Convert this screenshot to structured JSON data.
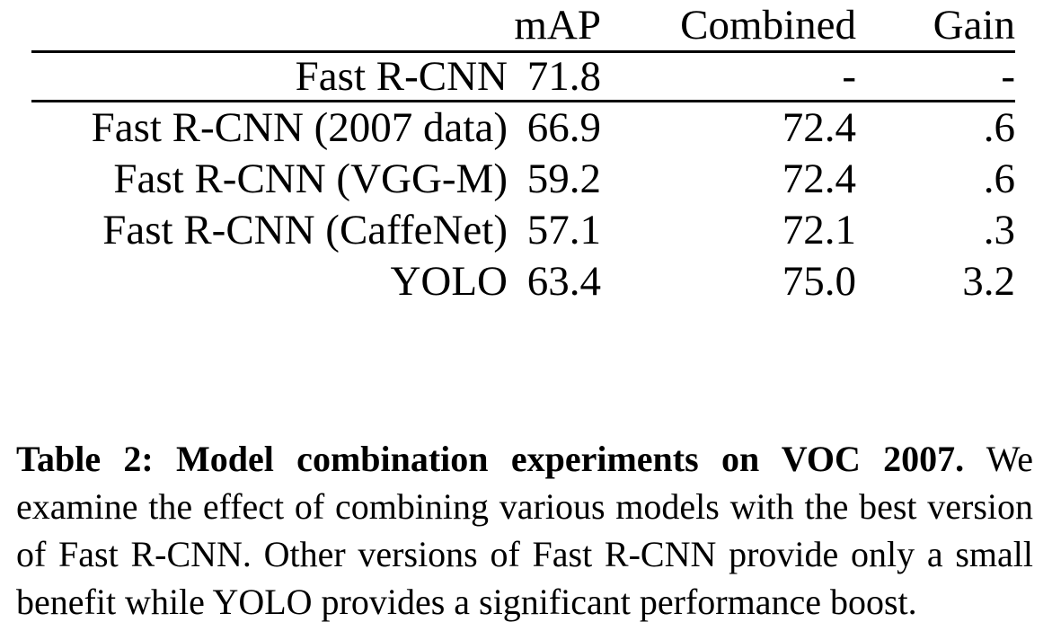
{
  "table": {
    "headers": {
      "model": "",
      "map": "mAP",
      "combined": "Combined",
      "gain": "Gain"
    },
    "rows": [
      {
        "model": "Fast R-CNN",
        "map": "71.8",
        "combined": "-",
        "gain": "-",
        "bold": []
      },
      {
        "model": "Fast R-CNN (2007 data)",
        "map": "66.9",
        "combined": "72.4",
        "gain": ".6",
        "bold": [
          "map"
        ]
      },
      {
        "model": "Fast R-CNN (VGG-M)",
        "map": "59.2",
        "combined": "72.4",
        "gain": ".6",
        "bold": []
      },
      {
        "model": "Fast R-CNN (CaffeNet)",
        "map": "57.1",
        "combined": "72.1",
        "gain": ".3",
        "bold": []
      },
      {
        "model": "YOLO",
        "map": "63.4",
        "combined": "75.0",
        "gain": "3.2",
        "bold": [
          "combined",
          "gain"
        ]
      }
    ]
  },
  "caption": {
    "label": "Table 2:",
    "title": "Model combination experiments on VOC 2007.",
    "body": "We examine the effect of combining various models with the best version of Fast R-CNN. Other versions of Fast R-CNN provide only a small benefit while YOLO provides a significant performance boost."
  }
}
